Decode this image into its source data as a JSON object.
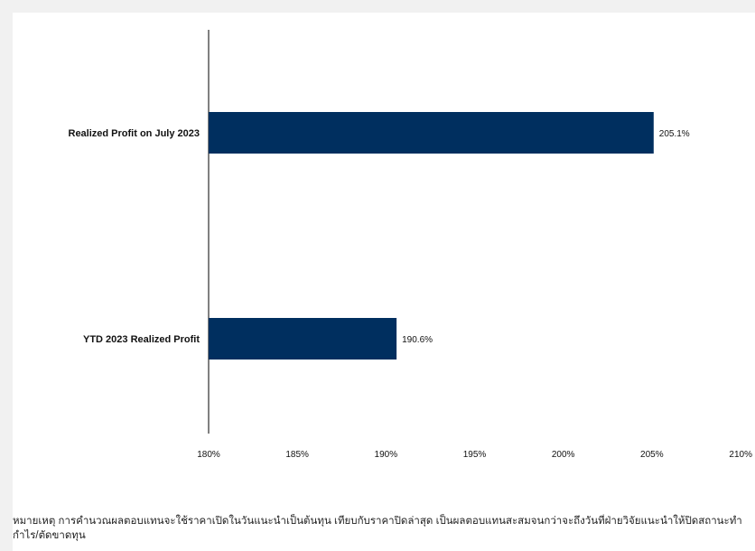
{
  "chart_data": {
    "type": "bar",
    "orientation": "horizontal",
    "categories": [
      "Realized Profit on July 2023",
      "YTD 2023  Realized Profit"
    ],
    "values": [
      205.1,
      190.6
    ],
    "data_labels": [
      "205.1%",
      "190.6%"
    ],
    "xlim": [
      180,
      210
    ],
    "xticks": [
      180,
      185,
      190,
      195,
      200,
      205,
      210
    ],
    "xtick_labels": [
      "180%",
      "185%",
      "190%",
      "195%",
      "200%",
      "205%",
      "210%"
    ],
    "title": "",
    "xlabel": "",
    "ylabel": "",
    "grid": false,
    "legend": "none",
    "bar_color": "#002f5f"
  },
  "footnote": {
    "line1": "หมายเหตุ การคำนวณผลตอบแทนจะใช้ราคาเปิดในวันแนะนำเป็นต้นทุน  เทียบกับราคาปิดล่าสุด  เป็นผลตอบแทนสะสมจนกว่าจะถึงวันที่ฝ่ายวิจัยแนะนำให้ปิดสถานะทำ",
    "line2": "กำไร/ตัดขาดทุน"
  }
}
